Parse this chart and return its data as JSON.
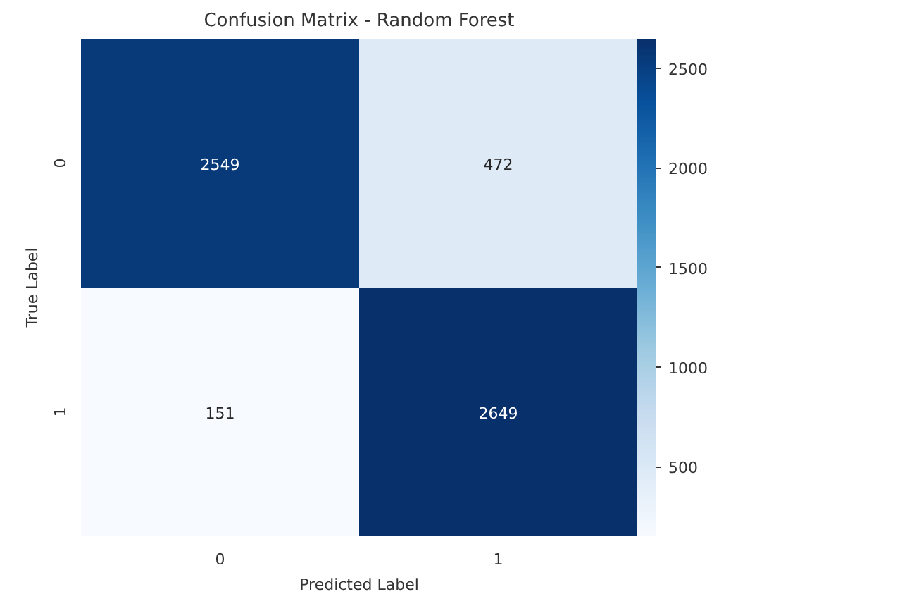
{
  "chart_data": {
    "type": "heatmap",
    "title": "Confusion Matrix - Random Forest",
    "xlabel": "Predicted Label",
    "ylabel": "True Label",
    "categories": [
      "0",
      "1"
    ],
    "y_categories": [
      "0",
      "1"
    ],
    "cells": [
      [
        2549,
        472
      ],
      [
        151,
        2649
      ]
    ],
    "data_labels": true,
    "clim": [
      151,
      2649
    ],
    "cticks": [
      500,
      1000,
      1500,
      2000,
      2500
    ]
  }
}
